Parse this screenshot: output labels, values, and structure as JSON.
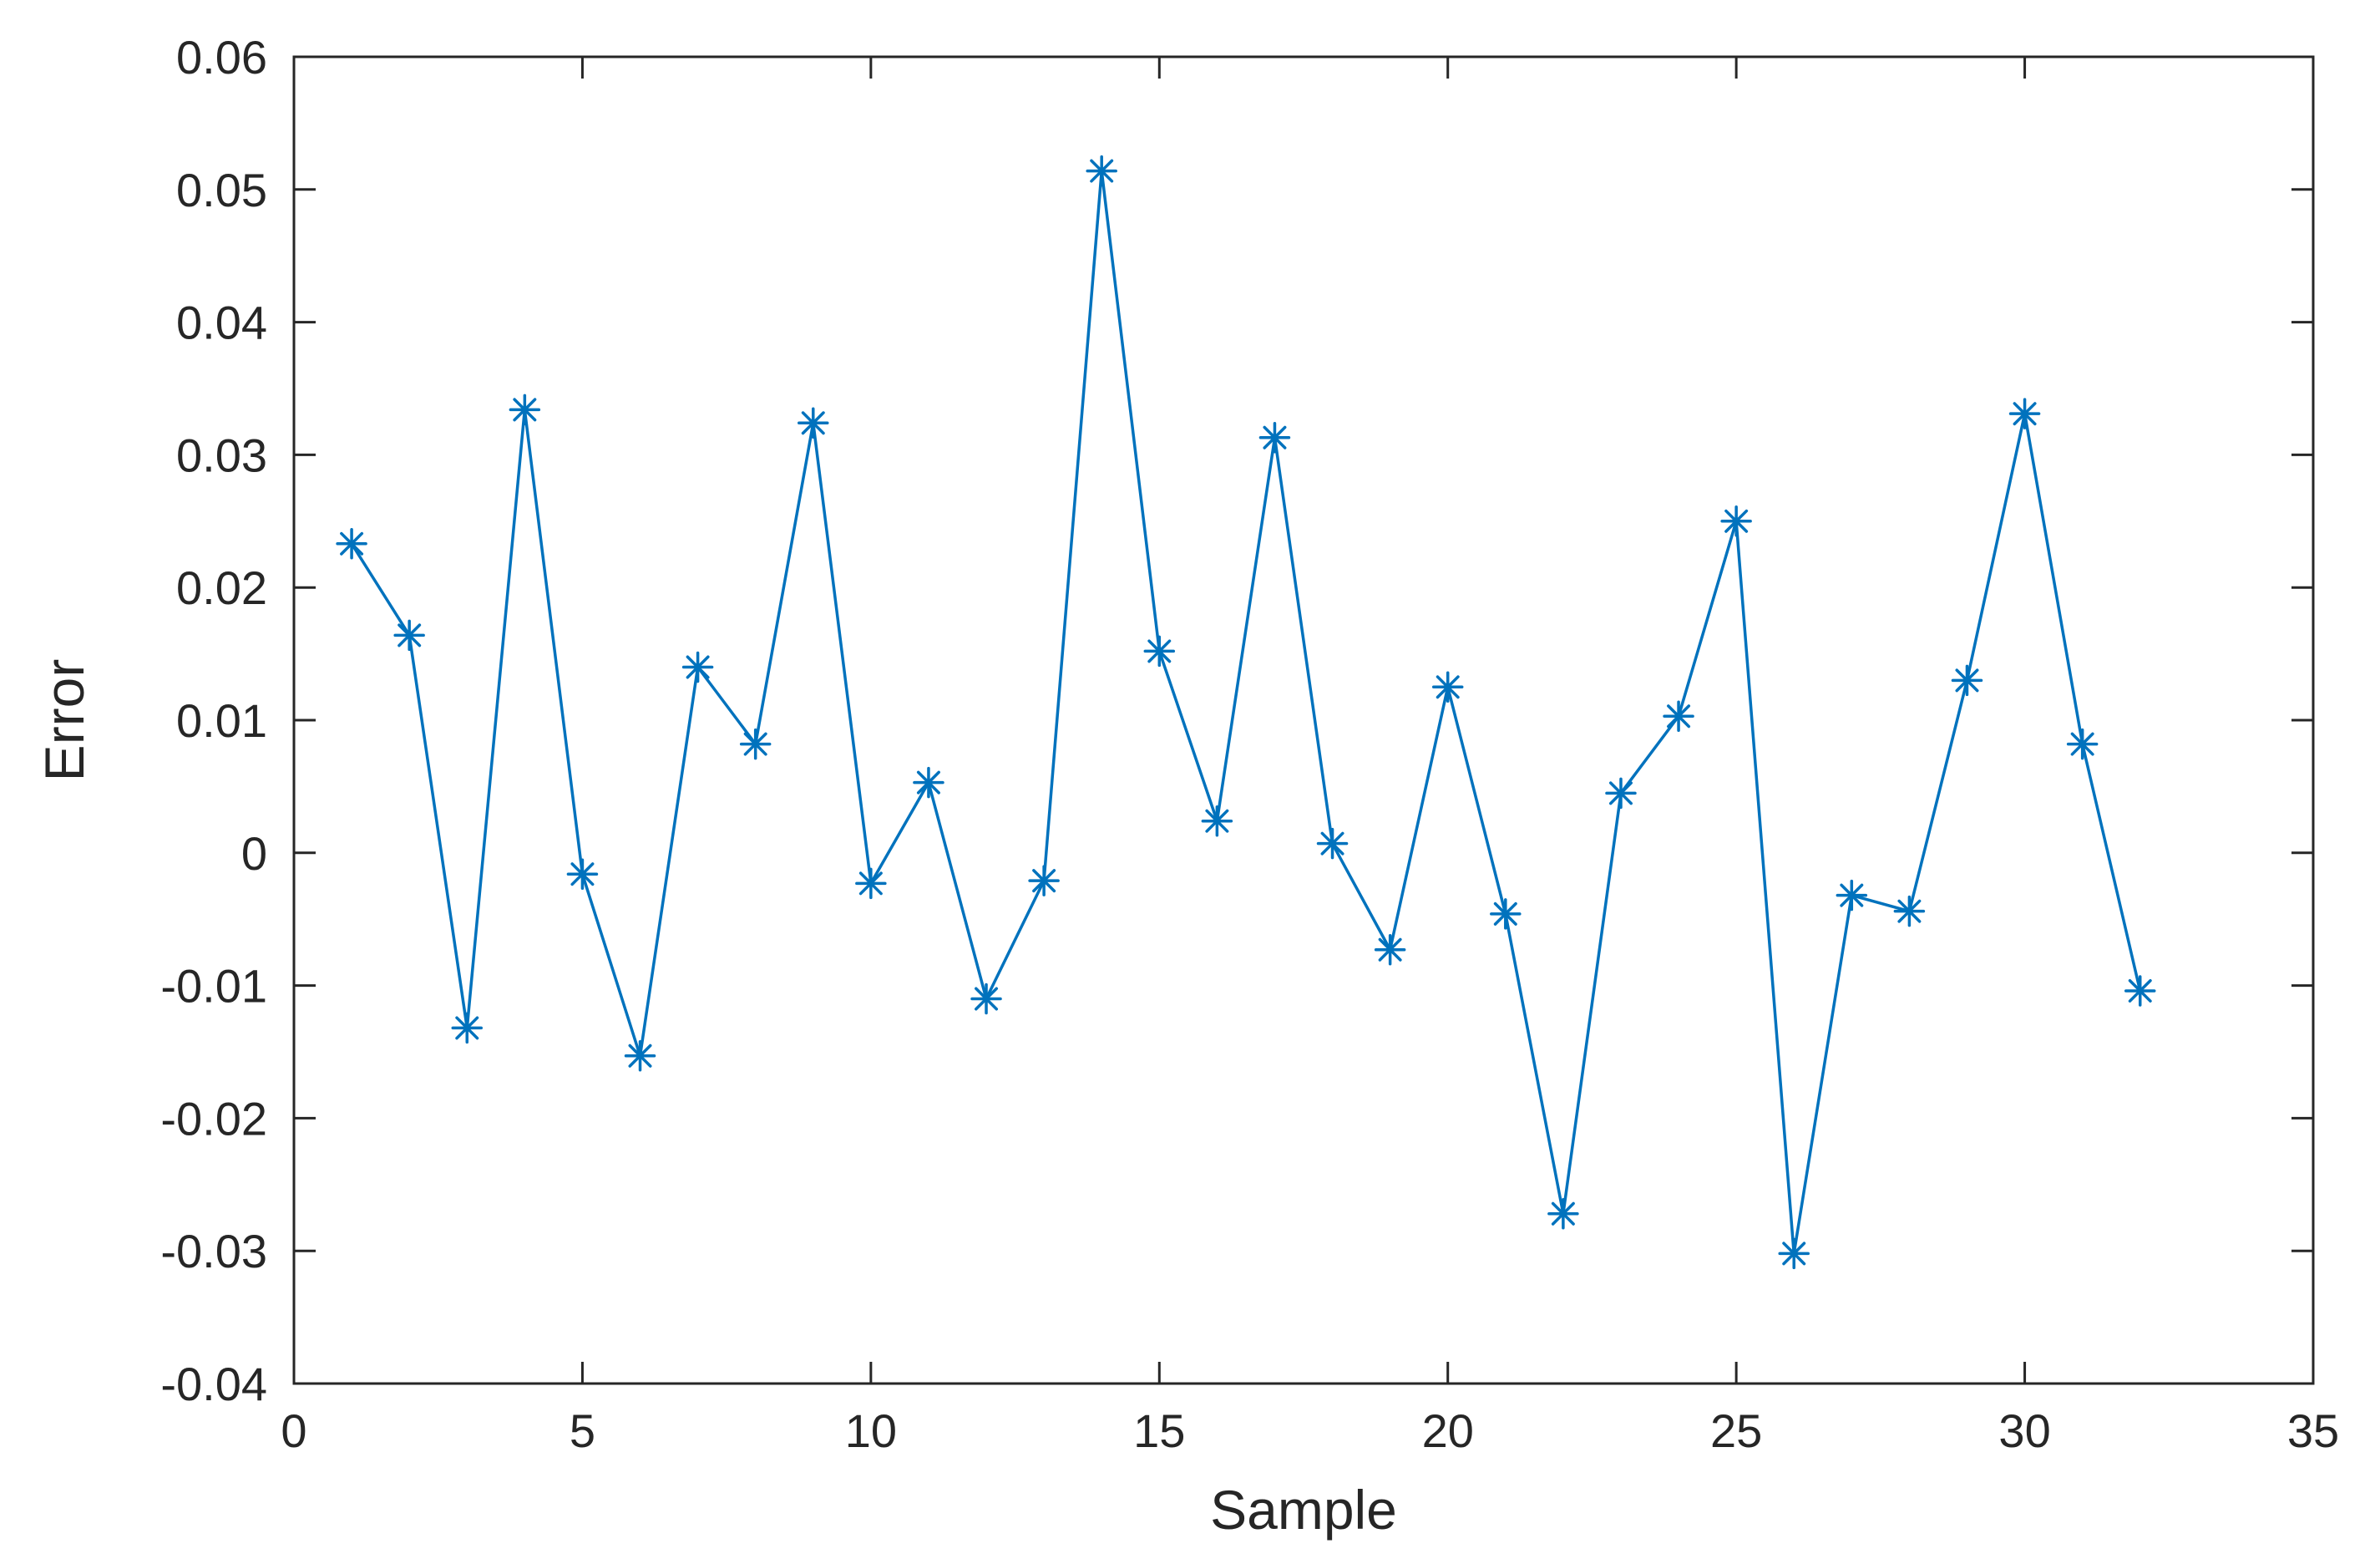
{
  "chart_data": {
    "type": "line",
    "title": "",
    "xlabel": "Sample",
    "ylabel": "Error",
    "xlim": [
      0,
      35
    ],
    "ylim": [
      -0.04,
      0.06
    ],
    "x_ticks": [
      0,
      5,
      10,
      15,
      20,
      25,
      30,
      35
    ],
    "x_tick_labels": [
      "0",
      "5",
      "10",
      "15",
      "20",
      "25",
      "30",
      "35"
    ],
    "y_ticks": [
      -0.04,
      -0.03,
      -0.02,
      -0.01,
      0,
      0.01,
      0.02,
      0.03,
      0.04,
      0.05,
      0.06
    ],
    "y_tick_labels": [
      "-0.04",
      "-0.03",
      "-0.02",
      "-0.01",
      "0",
      "0.01",
      "0.02",
      "0.03",
      "0.04",
      "0.05",
      "0.06"
    ],
    "grid": false,
    "legend": "none",
    "series": [
      {
        "marker": "asterisk",
        "color": "#0072BD",
        "x": [
          1,
          2,
          3,
          4,
          5,
          6,
          7,
          8,
          9,
          10,
          11,
          12,
          13,
          14,
          15,
          16,
          17,
          18,
          19,
          20,
          21,
          22,
          23,
          24,
          25,
          26,
          27,
          28,
          29,
          30,
          31,
          32
        ],
        "y": [
          0.0233,
          0.0164,
          -0.0132,
          0.0334,
          -0.0016,
          -0.0153,
          0.014,
          0.0082,
          0.0324,
          -0.0023,
          0.0053,
          -0.011,
          -0.0021,
          0.0514,
          0.0152,
          0.0024,
          0.0313,
          0.0007,
          -0.0073,
          0.0125,
          -0.0046,
          -0.0272,
          0.0045,
          0.0103,
          0.025,
          -0.0302,
          -0.0032,
          -0.0044,
          0.013,
          0.0331,
          0.0082,
          -0.0104
        ]
      }
    ]
  }
}
